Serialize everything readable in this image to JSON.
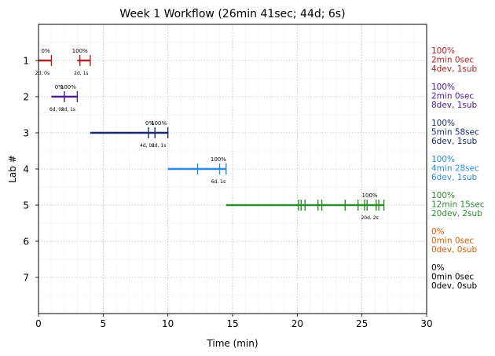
{
  "chart_data": {
    "type": "timeline",
    "title": "Week 1 Workflow (26min 41sec; 44d; 6s)",
    "xlabel": "Time (min)",
    "ylabel": "Lab #",
    "xlim": [
      0,
      30
    ],
    "ylim": [
      8,
      0
    ],
    "xticks": [
      "0",
      "5",
      "10",
      "15",
      "20",
      "25",
      "30"
    ],
    "yticks": [
      "1",
      "2",
      "3",
      "4",
      "5",
      "6",
      "7"
    ],
    "grid": true,
    "labs": [
      {
        "lab": 1,
        "color": "#b22222",
        "segments": [
          [
            0,
            1
          ],
          [
            3,
            4
          ]
        ],
        "marks": [
          1,
          3.2,
          4
        ],
        "top_labels": [
          {
            "x": 0.55,
            "text": "0%"
          },
          {
            "x": 3.2,
            "text": "100%"
          }
        ],
        "bottom_labels": [
          {
            "x": 0.3,
            "text": "2d, 0s"
          },
          {
            "x": 3.3,
            "text": "2d, 1s"
          }
        ],
        "summary": [
          "100%",
          "2min 0sec",
          "4dev, 1sub"
        ]
      },
      {
        "lab": 2,
        "color": "#4b1b8f",
        "segments": [
          [
            1,
            3
          ]
        ],
        "marks": [
          2,
          3
        ],
        "top_labels": [
          {
            "x": 1.6,
            "text": "0%"
          },
          {
            "x": 2.3,
            "text": "100%"
          }
        ],
        "bottom_labels": [
          {
            "x": 1.4,
            "text": "6d, 0s"
          },
          {
            "x": 2.3,
            "text": "2d, 1s"
          }
        ],
        "summary": [
          "100%",
          "2min 0sec",
          "8dev, 1sub"
        ]
      },
      {
        "lab": 3,
        "color": "#1a2a6c",
        "segments": [
          [
            4,
            10
          ]
        ],
        "marks": [
          8.5,
          9,
          10
        ],
        "top_labels": [
          {
            "x": 8.6,
            "text": "0%"
          },
          {
            "x": 9.3,
            "text": "100%"
          }
        ],
        "bottom_labels": [
          {
            "x": 8.4,
            "text": "4d, 0s"
          },
          {
            "x": 9.3,
            "text": "2d, 1s"
          }
        ],
        "summary": [
          "100%",
          "5min 58sec",
          "6dev, 1sub"
        ]
      },
      {
        "lab": 4,
        "color": "#2b8ae0",
        "segments": [
          [
            10,
            14.5
          ]
        ],
        "marks": [
          12.3,
          14,
          14.5
        ],
        "top_labels": [
          {
            "x": 13.9,
            "text": "100%"
          }
        ],
        "bottom_labels": [
          {
            "x": 13.9,
            "text": "6d, 1s"
          }
        ],
        "summary": [
          "100%",
          "4min 28sec",
          "6dev, 1sub"
        ]
      },
      {
        "lab": 5,
        "color": "#2e8b2e",
        "segments": [
          [
            14.5,
            26.7
          ]
        ],
        "marks": [
          20.1,
          20.3,
          20.6,
          21.6,
          21.9,
          23.7,
          24.7,
          25.2,
          25.4,
          26.1,
          26.3,
          26.7
        ],
        "top_labels": [
          {
            "x": 25.6,
            "text": "100%"
          }
        ],
        "bottom_labels": [
          {
            "x": 25.6,
            "text": "20d, 2s"
          }
        ],
        "summary": [
          "100%",
          "12min 15sec",
          "20dev, 2sub"
        ]
      },
      {
        "lab": 6,
        "color": "#e05a0a",
        "segments": [],
        "marks": [],
        "top_labels": [],
        "bottom_labels": [],
        "summary": [
          "0%",
          "0min 0sec",
          "0dev, 0sub"
        ]
      },
      {
        "lab": 7,
        "color": "#000000",
        "segments": [],
        "marks": [],
        "top_labels": [],
        "bottom_labels": [],
        "summary": [
          "0%",
          "0min 0sec",
          "0dev, 0sub"
        ]
      }
    ]
  }
}
